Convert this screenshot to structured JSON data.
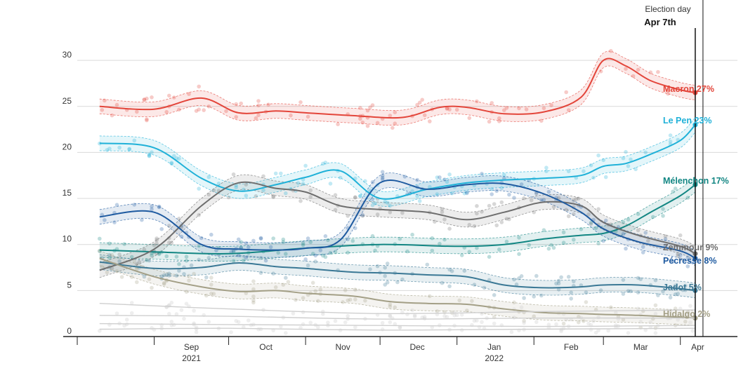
{
  "chart_data": {
    "type": "line",
    "title": "",
    "xlabel": "",
    "ylabel": "",
    "ylim": [
      0,
      32
    ],
    "xlim": [
      "2021-08-01",
      "2022-04-24"
    ],
    "grid": true,
    "y_ticks": [
      "0",
      "5",
      "10",
      "15",
      "20",
      "25",
      "30"
    ],
    "x_ticks": [
      {
        "date": "2021-09-01",
        "label": "Sep",
        "sublabel": "2021"
      },
      {
        "date": "2021-10-01",
        "label": "Oct",
        "sublabel": ""
      },
      {
        "date": "2021-11-01",
        "label": "Nov",
        "sublabel": ""
      },
      {
        "date": "2021-12-01",
        "label": "Dec",
        "sublabel": ""
      },
      {
        "date": "2022-01-01",
        "label": "Jan",
        "sublabel": "2022"
      },
      {
        "date": "2022-02-01",
        "label": "Feb",
        "sublabel": ""
      },
      {
        "date": "2022-03-01",
        "label": "Mar",
        "sublabel": ""
      },
      {
        "date": "2022-04-01",
        "label": "Apr",
        "sublabel": ""
      }
    ],
    "event": {
      "label": "Election day",
      "date_label": "Apr 7th",
      "date": "2022-04-07"
    },
    "series": [
      {
        "name": "Macron",
        "end_label": "Macron 27%",
        "color": "#e3453a",
        "x": [
          "2021-08-10",
          "2021-09-01",
          "2021-09-20",
          "2021-10-05",
          "2021-10-20",
          "2021-11-01",
          "2021-11-20",
          "2021-12-10",
          "2021-12-25",
          "2022-01-05",
          "2022-01-20",
          "2022-02-05",
          "2022-02-20",
          "2022-03-01",
          "2022-03-10",
          "2022-03-20",
          "2022-04-01",
          "2022-04-07"
        ],
        "values": [
          25,
          24.7,
          25.9,
          24.3,
          24.5,
          24.3,
          24.0,
          23.8,
          24.9,
          24.9,
          24.2,
          24.4,
          26.0,
          30.0,
          29.4,
          27.8,
          26.8,
          26.5
        ]
      },
      {
        "name": "Le Pen",
        "end_label": "Le Pen 23%",
        "color": "#1fb1d8",
        "x": [
          "2021-08-10",
          "2021-09-01",
          "2021-09-20",
          "2021-10-05",
          "2021-10-20",
          "2021-11-01",
          "2021-11-15",
          "2021-12-01",
          "2021-12-20",
          "2022-01-05",
          "2022-01-20",
          "2022-02-05",
          "2022-02-20",
          "2022-03-01",
          "2022-03-10",
          "2022-03-20",
          "2022-04-01",
          "2022-04-07"
        ],
        "values": [
          21,
          20.5,
          17.2,
          15.8,
          16.5,
          17.3,
          18.0,
          15.0,
          16.0,
          16.7,
          17.0,
          17.2,
          17.5,
          18.5,
          18.8,
          19.8,
          21.3,
          23.0
        ]
      },
      {
        "name": "Mélenchon",
        "end_label": "Mélenchon 17%",
        "color": "#128683",
        "x": [
          "2021-08-10",
          "2021-09-01",
          "2021-10-01",
          "2021-11-01",
          "2021-12-01",
          "2022-01-01",
          "2022-01-20",
          "2022-02-05",
          "2022-02-20",
          "2022-03-01",
          "2022-03-10",
          "2022-03-20",
          "2022-04-01",
          "2022-04-07"
        ],
        "values": [
          9.4,
          9.2,
          9.0,
          9.6,
          10.0,
          9.8,
          10.0,
          10.6,
          11.0,
          11.2,
          12.0,
          13.5,
          15.3,
          16.5
        ]
      },
      {
        "name": "Zemmour",
        "end_label": "Zemmour 9%",
        "color": "#6e6e6e",
        "x": [
          "2021-08-10",
          "2021-09-01",
          "2021-09-20",
          "2021-10-05",
          "2021-10-20",
          "2021-11-01",
          "2021-11-15",
          "2021-12-01",
          "2021-12-20",
          "2022-01-05",
          "2022-01-20",
          "2022-02-05",
          "2022-02-20",
          "2022-03-01",
          "2022-03-15",
          "2022-04-01",
          "2022-04-07"
        ],
        "values": [
          7.2,
          9.5,
          14.2,
          16.7,
          16.1,
          15.7,
          14.2,
          13.8,
          13.5,
          12.7,
          13.5,
          14.6,
          14.2,
          12.4,
          11.0,
          9.8,
          9.0
        ]
      },
      {
        "name": "Pécresse",
        "end_label": "Pécresse 8%",
        "color": "#1e5aa0",
        "x": [
          "2021-08-10",
          "2021-09-01",
          "2021-09-20",
          "2021-10-05",
          "2021-10-20",
          "2021-11-01",
          "2021-11-15",
          "2021-12-01",
          "2021-12-20",
          "2022-01-05",
          "2022-01-20",
          "2022-02-05",
          "2022-02-20",
          "2022-03-01",
          "2022-03-15",
          "2022-04-01",
          "2022-04-07"
        ],
        "values": [
          13.0,
          13.5,
          10.0,
          9.5,
          9.4,
          9.6,
          10.5,
          16.7,
          16.0,
          16.5,
          16.6,
          15.5,
          13.5,
          11.7,
          10.3,
          9.3,
          8.5
        ]
      },
      {
        "name": "Jadot",
        "end_label": "Jadot 5%",
        "color": "#3a7895",
        "x": [
          "2021-08-10",
          "2021-09-01",
          "2021-09-20",
          "2021-10-05",
          "2021-10-20",
          "2021-11-01",
          "2021-11-20",
          "2021-12-05",
          "2021-12-20",
          "2022-01-05",
          "2022-01-20",
          "2022-02-05",
          "2022-02-20",
          "2022-03-01",
          "2022-03-15",
          "2022-04-01",
          "2022-04-07"
        ],
        "values": [
          8.1,
          7.4,
          7.5,
          8.0,
          7.6,
          7.4,
          7.0,
          6.9,
          6.7,
          6.5,
          5.6,
          5.3,
          5.4,
          5.6,
          5.6,
          5.2,
          5.0
        ]
      },
      {
        "name": "Hidalgo",
        "end_label": "Hidalgo 2%",
        "color": "#a39f86",
        "x": [
          "2021-08-10",
          "2021-09-01",
          "2021-09-20",
          "2021-10-05",
          "2021-10-20",
          "2021-11-01",
          "2021-11-20",
          "2021-12-05",
          "2021-12-20",
          "2022-01-05",
          "2022-01-20",
          "2022-02-05",
          "2022-02-20",
          "2022-03-01",
          "2022-03-15",
          "2022-04-01",
          "2022-04-07"
        ],
        "values": [
          8.5,
          6.5,
          5.4,
          4.9,
          5.0,
          4.7,
          4.4,
          3.8,
          3.6,
          3.5,
          3.0,
          2.6,
          2.5,
          2.4,
          2.3,
          2.1,
          2.0
        ]
      },
      {
        "name": "",
        "end_label": "",
        "color": "#cfcfcf",
        "x": [
          "2021-08-10",
          "2021-10-01",
          "2021-12-01",
          "2022-02-01",
          "2022-04-07"
        ],
        "values": [
          3.6,
          3.0,
          2.5,
          2.7,
          2.9
        ]
      },
      {
        "name": "",
        "end_label": "",
        "color": "#cfcfcf",
        "x": [
          "2021-08-10",
          "2021-10-01",
          "2021-12-01",
          "2022-02-01",
          "2022-04-07"
        ],
        "values": [
          2.3,
          2.2,
          1.9,
          2.0,
          2.0
        ]
      },
      {
        "name": "",
        "end_label": "",
        "color": "#cfcfcf",
        "x": [
          "2021-08-10",
          "2021-10-01",
          "2021-12-01",
          "2022-02-01",
          "2022-04-07"
        ],
        "values": [
          1.4,
          1.3,
          1.2,
          1.1,
          1.2
        ]
      },
      {
        "name": "",
        "end_label": "",
        "color": "#cfcfcf",
        "x": [
          "2021-08-10",
          "2021-10-01",
          "2021-12-01",
          "2022-02-01",
          "2022-04-07"
        ],
        "values": [
          0.8,
          0.9,
          0.7,
          0.8,
          0.9
        ]
      }
    ]
  }
}
